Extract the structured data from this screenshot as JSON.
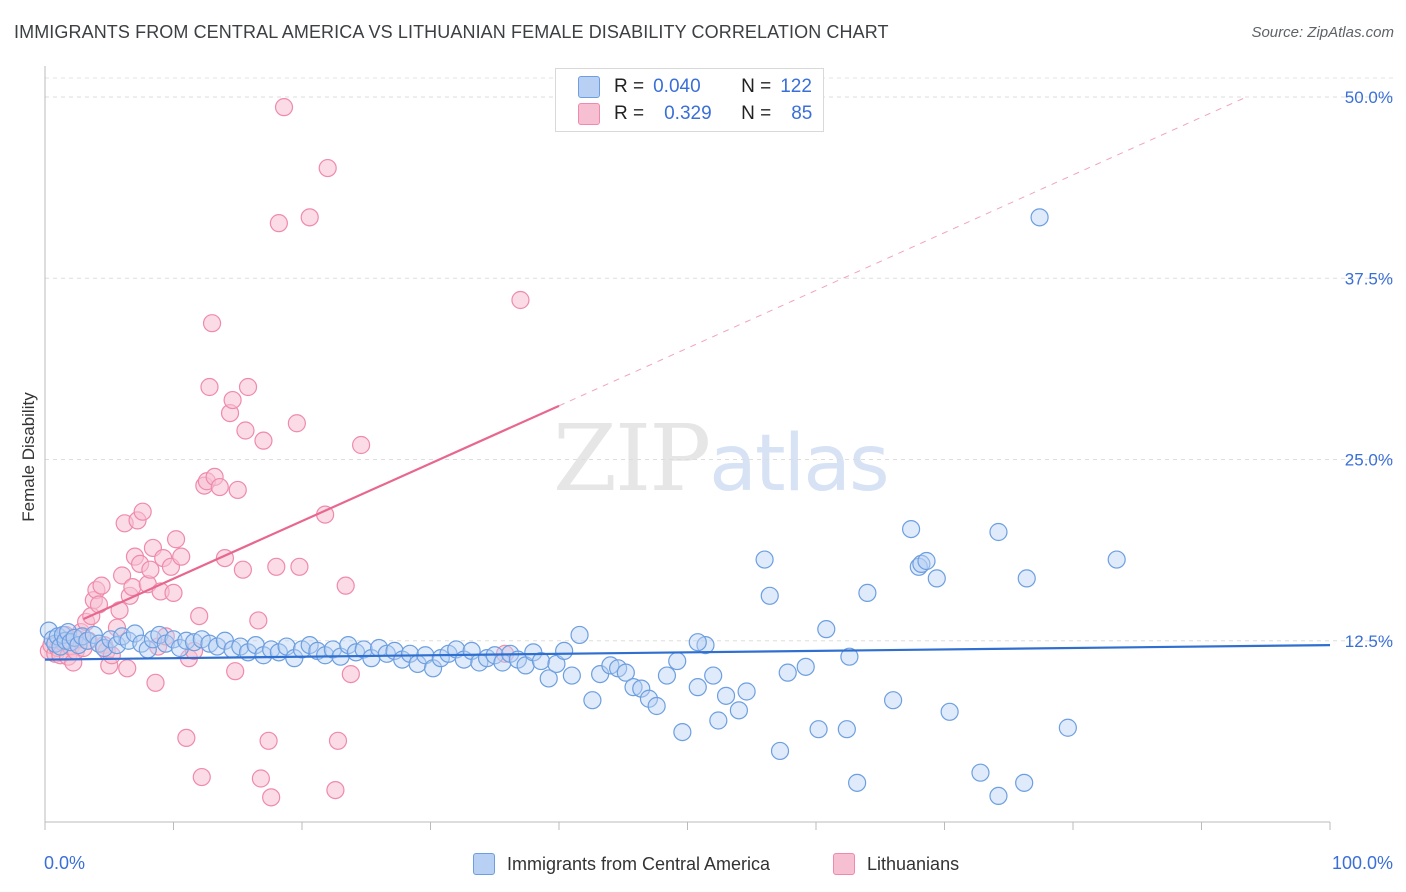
{
  "header": {
    "title": "IMMIGRANTS FROM CENTRAL AMERICA VS LITHUANIAN FEMALE DISABILITY CORRELATION CHART",
    "source": "Source: ZipAtlas.com"
  },
  "watermark": {
    "zip": "ZIP",
    "atlas": "atlas"
  },
  "legend": {
    "rows": [
      {
        "r_label": "R =",
        "r_value": "0.040",
        "n_label": "N =",
        "n_value": "122"
      },
      {
        "r_label": "R =",
        "r_value": "0.329",
        "n_label": "N =",
        "n_value": "85"
      }
    ]
  },
  "bottom_legend": {
    "blue_label": "Immigrants from Central America",
    "pink_label": "Lithuanians"
  },
  "colors": {
    "blue": "#6d9fe0",
    "blue_fill": "#b7d0f3",
    "blue_line": "#2f6fd0",
    "pink": "#ef8aab",
    "pink_fill": "#f7c0d2",
    "pink_line": "#e8678f",
    "axis_text": "#3a6fd8"
  },
  "chart_data": {
    "type": "scatter",
    "title": "IMMIGRANTS FROM CENTRAL AMERICA VS LITHUANIAN FEMALE DISABILITY CORRELATION CHART",
    "xlabel": "",
    "ylabel": "Female Disability",
    "xlim": [
      0,
      100
    ],
    "ylim": [
      0,
      50
    ],
    "x_tick_labels": [
      "0.0%",
      "100.0%"
    ],
    "y_ticks": [
      12.5,
      25.0,
      37.5,
      50.0
    ],
    "y_tick_labels": [
      "12.5%",
      "25.0%",
      "37.5%",
      "50.0%"
    ],
    "grid": "horizontal dashed",
    "legend_position": "top-center",
    "series": [
      {
        "name": "Immigrants from Central America",
        "color": "#6d9fe0",
        "trend": {
          "x0": 0,
          "y0": 11.2,
          "x1": 100,
          "y1": 12.2,
          "style": "solid"
        },
        "points": [
          [
            0.3,
            13.2
          ],
          [
            0.6,
            12.6
          ],
          [
            0.8,
            12.3
          ],
          [
            1.0,
            12.8
          ],
          [
            1.2,
            12.1
          ],
          [
            1.4,
            12.9
          ],
          [
            1.6,
            12.5
          ],
          [
            1.8,
            13.1
          ],
          [
            2.0,
            12.4
          ],
          [
            2.3,
            12.7
          ],
          [
            2.6,
            12.2
          ],
          [
            2.9,
            12.8
          ],
          [
            3.3,
            12.5
          ],
          [
            3.8,
            12.9
          ],
          [
            4.2,
            12.3
          ],
          [
            4.6,
            12.0
          ],
          [
            5.1,
            12.6
          ],
          [
            5.6,
            12.2
          ],
          [
            6.0,
            12.8
          ],
          [
            6.5,
            12.5
          ],
          [
            7.0,
            13.0
          ],
          [
            7.5,
            12.3
          ],
          [
            8.0,
            11.9
          ],
          [
            8.4,
            12.6
          ],
          [
            8.9,
            12.9
          ],
          [
            9.4,
            12.3
          ],
          [
            10.0,
            12.6
          ],
          [
            10.5,
            12.0
          ],
          [
            11.0,
            12.5
          ],
          [
            11.6,
            12.4
          ],
          [
            12.2,
            12.6
          ],
          [
            12.8,
            12.3
          ],
          [
            13.4,
            12.1
          ],
          [
            14.0,
            12.5
          ],
          [
            14.6,
            11.9
          ],
          [
            15.2,
            12.1
          ],
          [
            15.8,
            11.7
          ],
          [
            16.4,
            12.2
          ],
          [
            17.0,
            11.5
          ],
          [
            17.6,
            11.9
          ],
          [
            18.2,
            11.7
          ],
          [
            18.8,
            12.1
          ],
          [
            19.4,
            11.3
          ],
          [
            20.0,
            11.9
          ],
          [
            20.6,
            12.2
          ],
          [
            21.2,
            11.8
          ],
          [
            21.8,
            11.5
          ],
          [
            22.4,
            11.9
          ],
          [
            23.0,
            11.4
          ],
          [
            23.6,
            12.2
          ],
          [
            24.2,
            11.7
          ],
          [
            24.8,
            11.9
          ],
          [
            25.4,
            11.3
          ],
          [
            26.0,
            12.0
          ],
          [
            26.6,
            11.6
          ],
          [
            27.2,
            11.8
          ],
          [
            27.8,
            11.2
          ],
          [
            28.4,
            11.6
          ],
          [
            29.0,
            10.9
          ],
          [
            29.6,
            11.5
          ],
          [
            30.2,
            10.6
          ],
          [
            30.8,
            11.3
          ],
          [
            31.4,
            11.6
          ],
          [
            32.0,
            11.9
          ],
          [
            32.6,
            11.2
          ],
          [
            33.2,
            11.8
          ],
          [
            33.8,
            11.0
          ],
          [
            34.4,
            11.3
          ],
          [
            35.0,
            11.5
          ],
          [
            35.6,
            11.0
          ],
          [
            36.2,
            11.6
          ],
          [
            36.8,
            11.2
          ],
          [
            37.4,
            10.8
          ],
          [
            38.0,
            11.7
          ],
          [
            38.6,
            11.1
          ],
          [
            39.2,
            9.9
          ],
          [
            39.8,
            10.9
          ],
          [
            40.4,
            11.8
          ],
          [
            41.0,
            10.1
          ],
          [
            41.6,
            12.9
          ],
          [
            42.6,
            8.4
          ],
          [
            43.2,
            10.2
          ],
          [
            44.0,
            10.8
          ],
          [
            44.6,
            10.6
          ],
          [
            45.2,
            10.3
          ],
          [
            45.8,
            9.3
          ],
          [
            46.4,
            9.2
          ],
          [
            47.0,
            8.5
          ],
          [
            47.6,
            8.0
          ],
          [
            48.4,
            10.1
          ],
          [
            49.2,
            11.1
          ],
          [
            49.6,
            6.2
          ],
          [
            50.8,
            9.3
          ],
          [
            51.4,
            12.2
          ],
          [
            52.0,
            10.1
          ],
          [
            52.4,
            7.0
          ],
          [
            53.0,
            8.7
          ],
          [
            54.0,
            7.7
          ],
          [
            54.6,
            9.0
          ],
          [
            56.0,
            18.1
          ],
          [
            56.4,
            15.6
          ],
          [
            57.2,
            4.9
          ],
          [
            57.8,
            10.3
          ],
          [
            59.2,
            10.7
          ],
          [
            60.2,
            6.4
          ],
          [
            60.8,
            13.3
          ],
          [
            62.4,
            6.4
          ],
          [
            62.6,
            11.4
          ],
          [
            63.2,
            2.7
          ],
          [
            64.0,
            15.8
          ],
          [
            66.0,
            8.4
          ],
          [
            67.4,
            20.2
          ],
          [
            68.0,
            17.6
          ],
          [
            68.2,
            17.8
          ],
          [
            68.6,
            18.0
          ],
          [
            69.4,
            16.8
          ],
          [
            70.4,
            7.6
          ],
          [
            72.8,
            3.4
          ],
          [
            74.2,
            1.8
          ],
          [
            74.2,
            20.0
          ],
          [
            76.2,
            2.7
          ],
          [
            76.4,
            16.8
          ],
          [
            79.6,
            6.5
          ],
          [
            77.4,
            41.7
          ],
          [
            83.4,
            18.1
          ],
          [
            50.8,
            12.4
          ]
        ]
      },
      {
        "name": "Lithuanians",
        "color": "#ef8aab",
        "trend": {
          "x0": 3,
          "y0": 14.0,
          "x1": 40,
          "y1": 28.7,
          "style": "solid",
          "extend_to": [
            93.5,
            50.0
          ]
        },
        "points": [
          [
            0.3,
            11.8
          ],
          [
            0.5,
            12.2
          ],
          [
            0.8,
            11.6
          ],
          [
            1.0,
            12.0
          ],
          [
            1.2,
            11.5
          ],
          [
            1.4,
            12.4
          ],
          [
            1.6,
            12.9
          ],
          [
            1.8,
            11.4
          ],
          [
            2.0,
            12.1
          ],
          [
            2.2,
            11.0
          ],
          [
            2.4,
            11.8
          ],
          [
            2.6,
            12.6
          ],
          [
            2.8,
            13.1
          ],
          [
            3.0,
            12.0
          ],
          [
            3.2,
            13.8
          ],
          [
            3.4,
            12.5
          ],
          [
            3.6,
            14.2
          ],
          [
            3.8,
            15.3
          ],
          [
            4.0,
            16.0
          ],
          [
            4.2,
            15.0
          ],
          [
            4.4,
            16.3
          ],
          [
            4.6,
            12.2
          ],
          [
            4.8,
            11.8
          ],
          [
            5.0,
            10.8
          ],
          [
            5.2,
            11.5
          ],
          [
            5.6,
            13.4
          ],
          [
            5.8,
            14.6
          ],
          [
            6.0,
            17.0
          ],
          [
            6.2,
            20.6
          ],
          [
            6.4,
            10.6
          ],
          [
            6.6,
            15.6
          ],
          [
            6.8,
            16.2
          ],
          [
            7.0,
            18.3
          ],
          [
            7.2,
            20.8
          ],
          [
            7.4,
            17.8
          ],
          [
            7.6,
            21.4
          ],
          [
            8.0,
            16.4
          ],
          [
            8.2,
            17.4
          ],
          [
            8.4,
            18.9
          ],
          [
            8.6,
            9.6
          ],
          [
            8.8,
            12.1
          ],
          [
            9.0,
            15.9
          ],
          [
            9.2,
            18.2
          ],
          [
            9.4,
            12.8
          ],
          [
            9.8,
            17.6
          ],
          [
            10.0,
            15.8
          ],
          [
            10.2,
            19.5
          ],
          [
            10.6,
            18.3
          ],
          [
            11.0,
            5.8
          ],
          [
            11.2,
            11.3
          ],
          [
            11.6,
            11.8
          ],
          [
            12.0,
            14.2
          ],
          [
            12.2,
            3.1
          ],
          [
            12.4,
            23.2
          ],
          [
            12.6,
            23.5
          ],
          [
            12.8,
            30.0
          ],
          [
            13.0,
            34.4
          ],
          [
            13.2,
            23.8
          ],
          [
            13.6,
            23.1
          ],
          [
            14.0,
            18.2
          ],
          [
            14.4,
            28.2
          ],
          [
            14.6,
            29.1
          ],
          [
            14.8,
            10.4
          ],
          [
            15.0,
            22.9
          ],
          [
            15.4,
            17.4
          ],
          [
            15.6,
            27.0
          ],
          [
            15.8,
            30.0
          ],
          [
            16.6,
            13.9
          ],
          [
            16.8,
            3.0
          ],
          [
            17.0,
            26.3
          ],
          [
            17.4,
            5.6
          ],
          [
            17.6,
            1.7
          ],
          [
            18.0,
            17.6
          ],
          [
            18.2,
            41.3
          ],
          [
            18.6,
            49.3
          ],
          [
            19.6,
            27.5
          ],
          [
            19.8,
            17.6
          ],
          [
            20.6,
            41.7
          ],
          [
            21.8,
            21.2
          ],
          [
            22.0,
            45.1
          ],
          [
            22.6,
            2.2
          ],
          [
            22.8,
            5.6
          ],
          [
            23.4,
            16.3
          ],
          [
            23.8,
            10.2
          ],
          [
            24.6,
            26.0
          ],
          [
            35.8,
            11.6
          ],
          [
            37.0,
            36.0
          ]
        ]
      }
    ]
  }
}
